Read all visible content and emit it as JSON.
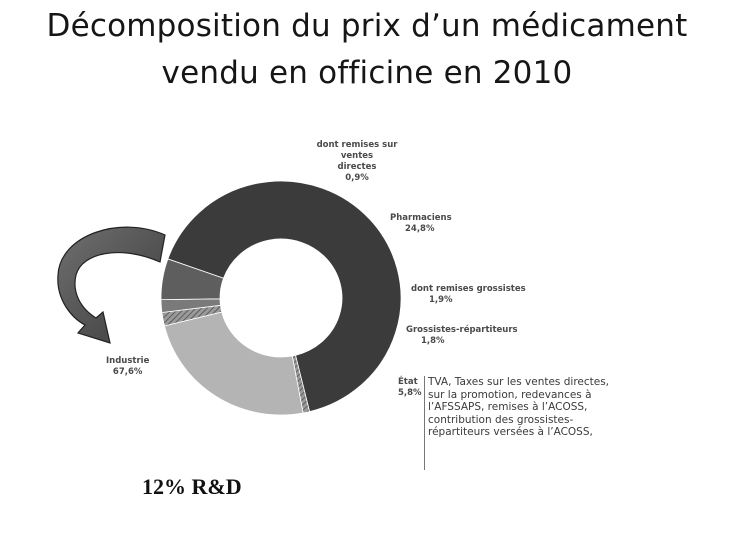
{
  "title_line1": "Décomposition du prix d’un médicament",
  "title_line2": "vendu en officine en 2010",
  "chart_data": {
    "type": "pie",
    "donut": true,
    "slices": [
      {
        "label": "Industrie",
        "value": 67.6,
        "value_text": "67,6%",
        "color": "#3b3b3b"
      },
      {
        "label": "dont remises sur ventes directes",
        "value": 0.9,
        "value_text": "0,9%",
        "color": "#8a8a8a"
      },
      {
        "label": "Pharmaciens",
        "value": 24.8,
        "value_text": "24,8%",
        "color": "#b4b4b4"
      },
      {
        "label": "dont remises grossistes",
        "value": 1.9,
        "value_text": "1,9%",
        "color": "#8f8f8f"
      },
      {
        "label": "Grossistes-répartiteurs",
        "value": 1.8,
        "value_text": "1,8%",
        "color": "#7a7a7a"
      },
      {
        "label": "État",
        "value": 5.8,
        "value_text": "5,8%",
        "color": "#5e5e5e"
      }
    ]
  },
  "labels": {
    "remises_directes": [
      "dont remises sur ventes",
      "directes",
      "0,9%"
    ],
    "pharmaciens": [
      "Pharmaciens",
      "24,8%"
    ],
    "remises_grossistes": [
      "dont remises grossistes",
      "1,9%"
    ],
    "grossistes": [
      "Grossistes-répartiteurs",
      "1,8%"
    ],
    "etat": [
      "État",
      "5,8%"
    ],
    "industrie": [
      "Industrie",
      "67,6%"
    ]
  },
  "etat_note": [
    "TVA, Taxes sur les ventes directes,",
    "sur la promotion, redevances à",
    "l’AFSSAPS, remises à l’ACOSS,",
    "contribution des grossistes-",
    "répartiteurs versées à l’ACOSS,"
  ],
  "annotation": "12% R&D"
}
